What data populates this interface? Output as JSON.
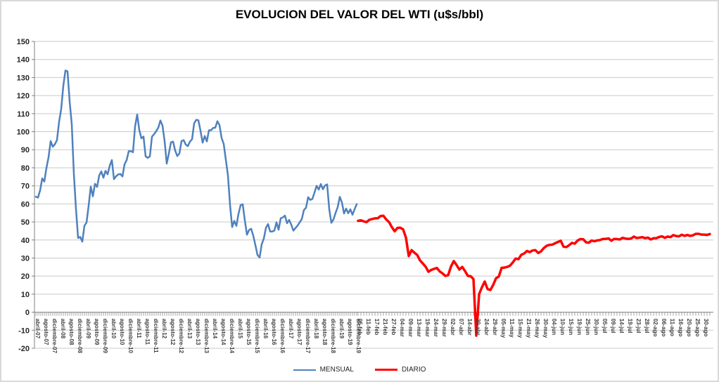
{
  "title": "EVOLUCION DEL VALOR DEL WTI (u$s/bbl)",
  "legend": [
    {
      "label": "MENSUAL",
      "color": "#4F81BD"
    },
    {
      "label": "DIARIO",
      "color": "#FF0000"
    }
  ],
  "colors": {
    "gridline": "#C9C9C9",
    "axis": "#808080",
    "tick_label": "#262626",
    "x_label": "#3F3F3F",
    "background": "#FFFFFF",
    "border": "#D9D9D9"
  },
  "chart_data": {
    "type": "line",
    "title": "EVOLUCION DEL VALOR DEL WTI (u$s/bbl)",
    "xlabel": "",
    "ylabel": "",
    "ylim": [
      -20,
      150
    ],
    "ytick_step": 10,
    "grid": true,
    "legend_position": "bottom",
    "series": [
      {
        "name": "MENSUAL",
        "color": "#4F81BD",
        "label_every": 4,
        "labels": [
          "abril-07",
          "agosto-07",
          "diciembre-07",
          "abril-08",
          "agosto-08",
          "diciembre-08",
          "abril-09",
          "agosto-09",
          "diciembre-09",
          "abril-10",
          "agosto-10",
          "diciembre-10",
          "abril-11",
          "agosto-11",
          "diciembre-11",
          "abril-12",
          "agosto-12",
          "diciembre-12",
          "abril-13",
          "agosto-13",
          "diciembre-13",
          "abril-14",
          "agosto-14",
          "diciembre-14",
          "abril-15",
          "agosto-15",
          "diciembre-15",
          "abril-16",
          "agosto-16",
          "diciembre-16",
          "abril-17",
          "agosto-17",
          "diciembre-17",
          "abril-18",
          "agosto-18",
          "diciembre-18",
          "abril-19",
          "agosto-19",
          "diciembre-19"
        ],
        "values": [
          64.0,
          63.5,
          67.5,
          74.1,
          72.4,
          79.9,
          85.8,
          94.8,
          91.7,
          93.0,
          95.4,
          105.5,
          112.6,
          125.4,
          133.9,
          133.4,
          116.7,
          104.1,
          76.6,
          57.3,
          41.1,
          41.7,
          39.1,
          47.9,
          49.7,
          59.0,
          69.6,
          64.2,
          71.1,
          69.4,
          75.7,
          78.0,
          74.5,
          78.3,
          76.4,
          81.2,
          84.3,
          73.7,
          75.3,
          76.3,
          76.6,
          75.2,
          81.9,
          84.3,
          89.2,
          89.2,
          88.6,
          102.9,
          109.5,
          100.9,
          96.3,
          97.3,
          86.3,
          85.5,
          86.3,
          97.2,
          98.6,
          100.3,
          102.2,
          106.2,
          103.3,
          94.7,
          82.3,
          87.9,
          94.1,
          94.5,
          89.5,
          86.5,
          87.9,
          94.8,
          95.3,
          92.9,
          92.0,
          94.5,
          95.8,
          104.7,
          106.6,
          106.3,
          100.5,
          93.9,
          97.6,
          94.6,
          100.8,
          100.8,
          102.1,
          102.2,
          105.8,
          103.6,
          96.5,
          93.2,
          84.4,
          75.8,
          59.3,
          47.2,
          50.6,
          47.8,
          54.5,
          59.3,
          59.8,
          50.9,
          42.9,
          45.5,
          46.2,
          42.4,
          37.2,
          31.7,
          30.3,
          37.6,
          40.8,
          46.7,
          48.8,
          44.7,
          44.7,
          45.2,
          49.8,
          45.7,
          52.0,
          52.5,
          53.5,
          49.3,
          51.1,
          48.5,
          45.2,
          46.6,
          48.0,
          49.8,
          51.6,
          56.6,
          57.9,
          63.7,
          62.2,
          62.7,
          66.3,
          70.0,
          67.9,
          71.0,
          68.1,
          70.2,
          70.8,
          57.0,
          49.5,
          51.4,
          55.0,
          58.2,
          63.9,
          60.8,
          54.7,
          57.4,
          54.8,
          57.0,
          54.0,
          57.0,
          59.9
        ]
      },
      {
        "name": "DIARIO",
        "color": "#FF0000",
        "label_every": 3,
        "labels": [
          "05-feb",
          "11-feb",
          "17-feb",
          "21-feb",
          "27-feb",
          "04-mar",
          "09-mar",
          "13-mar",
          "19-mar",
          "24-mar",
          "29-mar",
          "02-abr",
          "07-abr",
          "14-abr",
          "20-abr",
          "24-abr",
          "29-abr",
          "05-may",
          "11-may",
          "15-may",
          "21-may",
          "26-may",
          "30-may",
          "04-jun",
          "10-jun",
          "15-jun",
          "19-jun",
          "25-jun",
          "30-jun",
          "05-jul",
          "09-jul",
          "14-jul",
          "19-jul",
          "23-jul",
          "28-jul",
          "02-ago",
          "06-ago",
          "11-ago",
          "16-ago",
          "20-ago",
          "25-ago",
          "30-ago"
        ],
        "values": [
          50.6,
          50.9,
          50.3,
          49.9,
          51.2,
          51.6,
          52.0,
          52.1,
          53.3,
          53.4,
          51.4,
          49.9,
          47.1,
          44.8,
          46.7,
          46.8,
          45.9,
          41.3,
          31.1,
          34.4,
          33.0,
          31.7,
          28.7,
          27.0,
          25.2,
          22.4,
          23.4,
          24.0,
          24.5,
          22.6,
          21.5,
          20.1,
          20.5,
          25.3,
          28.3,
          26.1,
          23.6,
          25.1,
          22.8,
          20.1,
          19.9,
          18.3,
          -13.0,
          10.0,
          13.8,
          17.0,
          12.8,
          12.3,
          15.1,
          18.8,
          19.7,
          24.6,
          24.7,
          25.1,
          25.8,
          27.6,
          29.7,
          29.4,
          31.8,
          32.5,
          33.9,
          33.3,
          34.2,
          34.4,
          32.8,
          33.7,
          35.5,
          36.8,
          37.3,
          37.4,
          38.2,
          38.9,
          39.6,
          36.3,
          36.1,
          37.1,
          38.4,
          38.0,
          39.7,
          40.5,
          40.4,
          38.7,
          38.5,
          39.7,
          39.3,
          39.8,
          40.0,
          40.6,
          40.6,
          40.9,
          39.6,
          40.6,
          40.5,
          40.3,
          41.2,
          40.8,
          40.6,
          40.8,
          41.9,
          41.1,
          41.3,
          41.6,
          41.0,
          41.3,
          40.3,
          41.0,
          41.0,
          41.7,
          42.0,
          41.2,
          41.9,
          41.6,
          42.7,
          42.2,
          42.0,
          42.9,
          42.3,
          42.8,
          42.3,
          42.6,
          43.4,
          43.4,
          43.0,
          43.0,
          42.8,
          43.3
        ]
      }
    ]
  }
}
